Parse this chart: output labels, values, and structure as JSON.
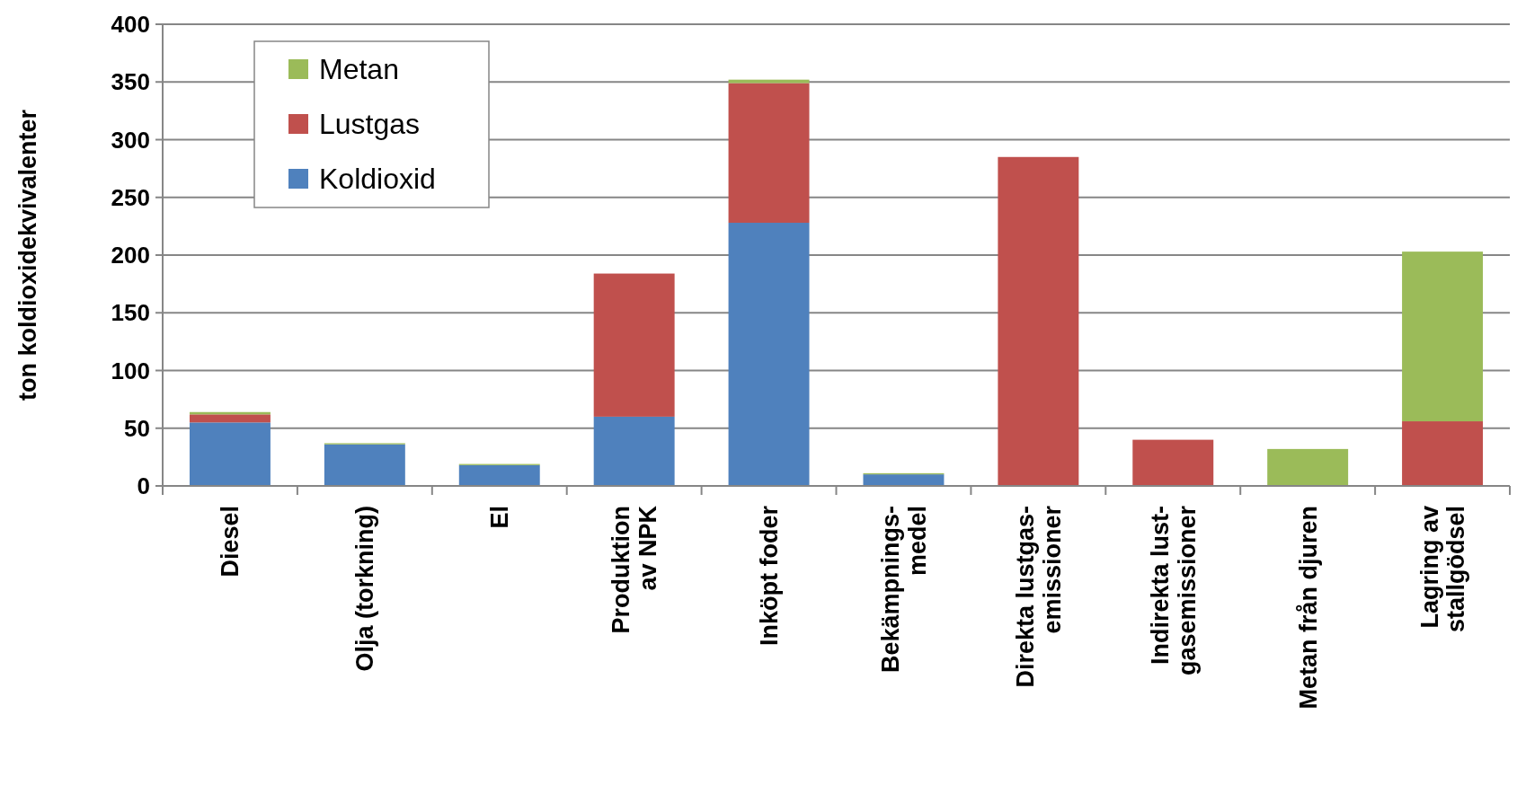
{
  "chart_data": {
    "type": "bar",
    "stacked": true,
    "ylabel": "ton koldioxidekvivalenter",
    "categories": [
      "Diesel",
      "Olja (torkning)",
      "El",
      "Produktion\nav NPK",
      "Inköpt foder",
      "Bekämpnings-\nmedel",
      "Direkta lustgas-\nemissioner",
      "Indirekta lust-\ngasemissioner",
      "Metan från djuren",
      "Lagring av\nstallgödsel"
    ],
    "series": [
      {
        "name": "Koldioxid",
        "color": "#4f81bd",
        "values": [
          55,
          36,
          18,
          60,
          228,
          10,
          0,
          0,
          0,
          0
        ]
      },
      {
        "name": "Lustgas",
        "color": "#c0504d",
        "values": [
          7,
          0,
          0,
          124,
          121,
          0,
          285,
          40,
          0,
          56
        ]
      },
      {
        "name": "Metan",
        "color": "#9bbb59",
        "values": [
          2,
          1,
          1,
          0,
          3,
          1,
          0,
          0,
          32,
          147
        ]
      }
    ],
    "ylim": [
      0,
      400
    ],
    "yticks": [
      0,
      50,
      100,
      150,
      200,
      250,
      300,
      350,
      400
    ],
    "grid": "y",
    "legend": "top left"
  }
}
